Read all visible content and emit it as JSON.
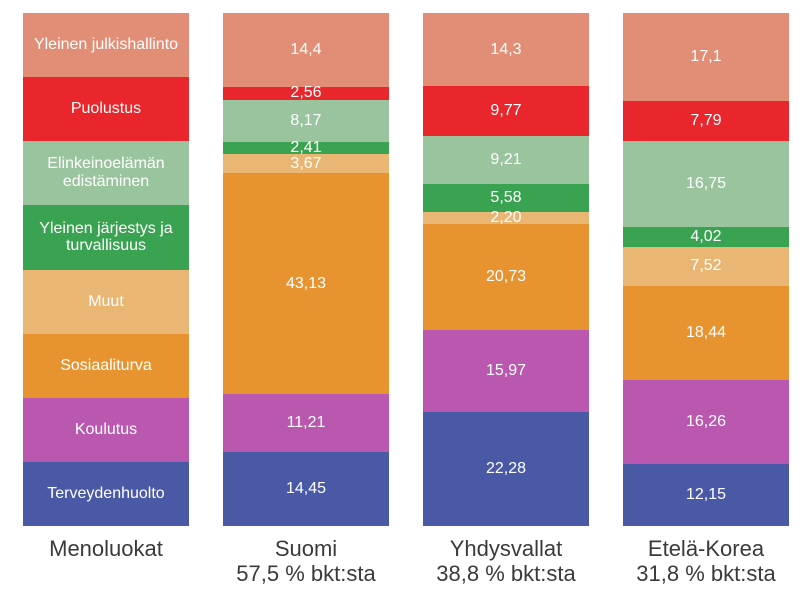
{
  "page": {
    "background": "#ffffff",
    "value_text_color": "#ffffff",
    "axis_label_color": "#3a3a3a"
  },
  "chart_data": {
    "type": "bar",
    "variant": "stacked-100-percent-vertical",
    "legend_title": "Menoluokat",
    "legend_position": "left-column",
    "grid": false,
    "series": [
      {
        "name": "Yleinen julkishallinto",
        "color": "#e28e76"
      },
      {
        "name": "Puolustus",
        "color": "#e8262b"
      },
      {
        "name": "Elinkeinoelämän edistäminen",
        "color": "#9ac49d"
      },
      {
        "name": "Yleinen järjestys ja turvallisuus",
        "color": "#3aa351"
      },
      {
        "name": "Muut",
        "color": "#eab674"
      },
      {
        "name": "Sosiaaliturva",
        "color": "#e79430"
      },
      {
        "name": "Koulutus",
        "color": "#b958ae"
      },
      {
        "name": "Terveydenhuolto",
        "color": "#4a59a5"
      }
    ],
    "columns": [
      {
        "label": "Suomi",
        "sublabel": "57,5 % bkt:sta",
        "values": [
          14.4,
          2.56,
          8.17,
          2.41,
          3.67,
          43.13,
          11.21,
          14.45
        ],
        "display": [
          "14,4",
          "2,56",
          "8,17",
          "2,41",
          "3,67",
          "43,13",
          "11,21",
          "14,45"
        ]
      },
      {
        "label": "Yhdysvallat",
        "sublabel": "38,8 % bkt:sta",
        "values": [
          14.3,
          9.77,
          9.21,
          5.58,
          2.2,
          20.73,
          15.97,
          22.28
        ],
        "display": [
          "14,3",
          "9,77",
          "9,21",
          "5,58",
          "2,20",
          "20,73",
          "15,97",
          "22,28"
        ]
      },
      {
        "label": "Etelä-Korea",
        "sublabel": "31,8 % bkt:sta",
        "values": [
          17.1,
          7.79,
          16.75,
          4.02,
          7.52,
          18.44,
          16.26,
          12.15
        ],
        "display": [
          "17,1",
          "7,79",
          "16,75",
          "4,02",
          "7,52",
          "18,44",
          "16,26",
          "12,15"
        ]
      }
    ]
  }
}
